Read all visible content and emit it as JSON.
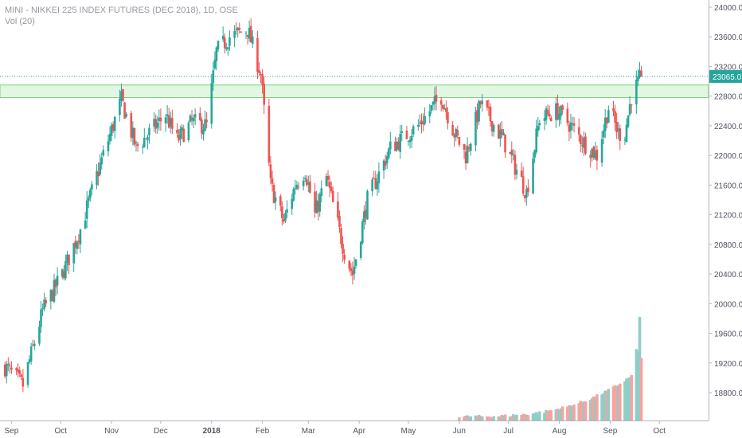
{
  "legend": {
    "title": "MINI - NIKKEI 225 INDEX FUTURES (DEC 2018), 1D, OSE",
    "volume": "Vol (20)"
  },
  "colors": {
    "up": "#26a69a",
    "down": "#ef5350",
    "vol_up": "#8fcec6",
    "vol_down": "#f7a3a1",
    "zone": "#c8f0c8",
    "zone_border": "#7ccf7c",
    "price_line": "#26a69a",
    "axis_text": "#50535e",
    "badge_bg": "#26a69a",
    "badge_text": "#ffffff"
  },
  "chart_data": {
    "type": "candlestick",
    "title": "MINI - NIKKEI 225 INDEX FUTURES (DEC 2018), 1D, OSE",
    "y_ticks": [
      24000,
      23600,
      23200,
      22800,
      22400,
      22000,
      21600,
      21200,
      20800,
      20400,
      20000,
      19600,
      19200,
      18800
    ],
    "y_tick_labels": [
      "24000.0",
      "23600.0",
      "23200.0",
      "22800.0",
      "22400.0",
      "22000.0",
      "21600.0",
      "21200.0",
      "20800.0",
      "20400.0",
      "20000.0",
      "19600.0",
      "19200.0",
      "18800.0"
    ],
    "ylim": [
      18400,
      24080
    ],
    "x_tick_labels": [
      "Sep",
      "Oct",
      "Nov",
      "Dec",
      "2018",
      "Feb",
      "Mar",
      "Apr",
      "May",
      "Jun",
      "Jul",
      "Aug",
      "Sep",
      "Oct"
    ],
    "x_tick_dates": [
      "2017-09-01",
      "2017-10-01",
      "2017-11-01",
      "2017-12-01",
      "2018-01-01",
      "2018-02-01",
      "2018-03-01",
      "2018-04-01",
      "2018-05-01",
      "2018-06-01",
      "2018-07-01",
      "2018-08-01",
      "2018-09-01",
      "2018-10-01"
    ],
    "x_range": [
      "2017-08-25",
      "2018-10-31"
    ],
    "resistance_zone": [
      22780,
      22950
    ],
    "last_price": 23065.0,
    "last_price_label": "23065.0",
    "anchors": [
      [
        "2017-08-28",
        19150
      ],
      [
        "2017-09-08",
        18900
      ],
      [
        "2017-09-20",
        19900
      ],
      [
        "2017-10-02",
        20400
      ],
      [
        "2017-10-13",
        21000
      ],
      [
        "2017-10-24",
        21800
      ],
      [
        "2017-11-07",
        22750
      ],
      [
        "2017-11-16",
        22100
      ],
      [
        "2017-11-24",
        22300
      ],
      [
        "2017-12-04",
        22550
      ],
      [
        "2017-12-11",
        22200
      ],
      [
        "2017-12-20",
        22450
      ],
      [
        "2017-12-29",
        22400
      ],
      [
        "2018-01-04",
        23400
      ],
      [
        "2018-01-12",
        23600
      ],
      [
        "2018-01-23",
        23700
      ],
      [
        "2018-01-31",
        23100
      ],
      [
        "2018-02-06",
        21600
      ],
      [
        "2018-02-14",
        21100
      ],
      [
        "2018-02-21",
        21600
      ],
      [
        "2018-02-27",
        21800
      ],
      [
        "2018-03-05",
        21200
      ],
      [
        "2018-03-12",
        21700
      ],
      [
        "2018-03-23",
        20700
      ],
      [
        "2018-03-28",
        20400
      ],
      [
        "2018-04-06",
        21400
      ],
      [
        "2018-04-20",
        22100
      ],
      [
        "2018-05-07",
        22400
      ],
      [
        "2018-05-21",
        22800
      ],
      [
        "2018-05-29",
        22300
      ],
      [
        "2018-06-05",
        22000
      ],
      [
        "2018-06-14",
        22700
      ],
      [
        "2018-06-28",
        22200
      ],
      [
        "2018-07-06",
        21800
      ],
      [
        "2018-07-12",
        21500
      ],
      [
        "2018-07-20",
        22500
      ],
      [
        "2018-07-31",
        22600
      ],
      [
        "2018-08-08",
        22400
      ],
      [
        "2018-08-15",
        22200
      ],
      [
        "2018-08-24",
        22000
      ],
      [
        "2018-08-31",
        22650
      ],
      [
        "2018-09-06",
        22300
      ],
      [
        "2018-09-10",
        22300
      ],
      [
        "2018-09-14",
        22800
      ],
      [
        "2018-09-20",
        23065
      ]
    ],
    "volume_start": "2018-06-01",
    "volume_end": "2018-09-20"
  }
}
